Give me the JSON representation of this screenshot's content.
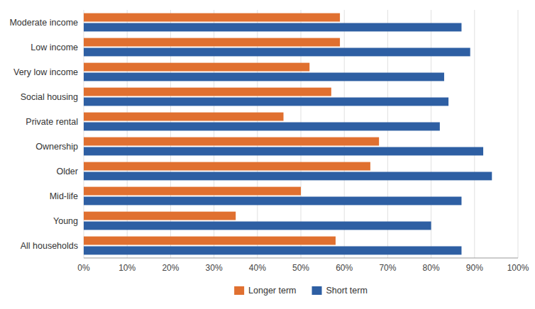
{
  "chart_data": {
    "type": "bar",
    "orientation": "horizontal",
    "categories": [
      "All households",
      "Young",
      "Mid-life",
      "Older",
      "Ownership",
      "Private rental",
      "Social housing",
      "Very low income",
      "Low income",
      "Moderate income"
    ],
    "series": [
      {
        "name": "Longer term",
        "color": "#E07030",
        "values": [
          0.58,
          0.35,
          0.5,
          0.66,
          0.68,
          0.46,
          0.57,
          0.52,
          0.59,
          0.59
        ]
      },
      {
        "name": "Short term",
        "color": "#2E5FA3",
        "values": [
          0.87,
          0.8,
          0.87,
          0.94,
          0.92,
          0.82,
          0.84,
          0.83,
          0.89,
          0.87
        ]
      }
    ],
    "xlim": [
      0,
      1.0
    ],
    "xticks": [
      {
        "value": 0.0,
        "label": "0%"
      },
      {
        "value": 0.1,
        "label": "10%"
      },
      {
        "value": 0.2,
        "label": "20%"
      },
      {
        "value": 0.3,
        "label": "30%"
      },
      {
        "value": 0.4,
        "label": "40%"
      },
      {
        "value": 0.5,
        "label": "50%"
      },
      {
        "value": 0.6,
        "label": "60%"
      },
      {
        "value": 0.7,
        "label": "70%"
      },
      {
        "value": 0.8,
        "label": "80%"
      },
      {
        "value": 0.9,
        "label": "90%"
      },
      {
        "value": 1.0,
        "label": "100%"
      }
    ],
    "grid": true,
    "legend": "bottom"
  }
}
